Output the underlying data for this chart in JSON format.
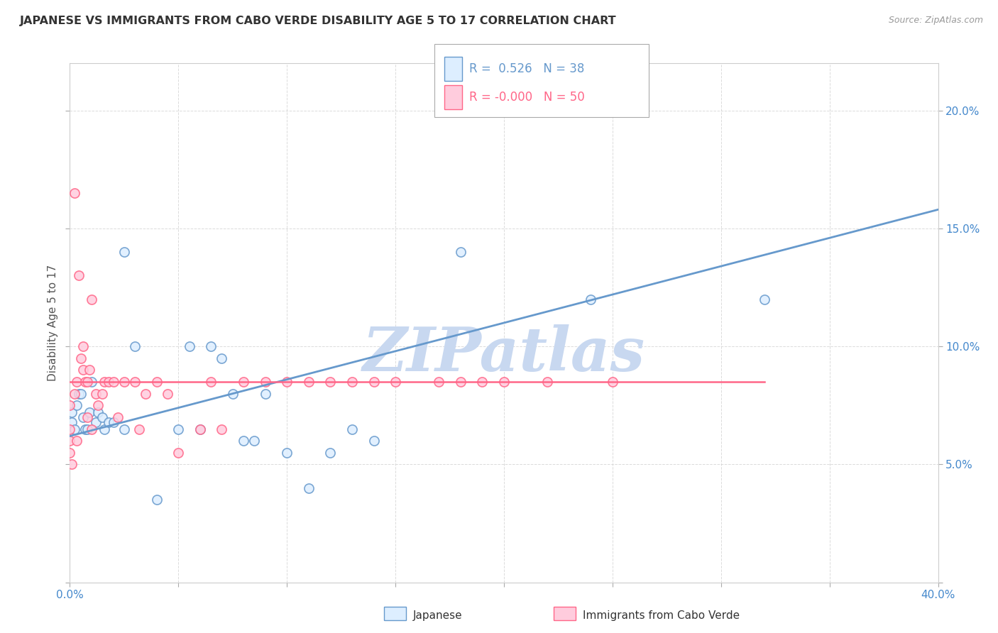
{
  "title": "JAPANESE VS IMMIGRANTS FROM CABO VERDE DISABILITY AGE 5 TO 17 CORRELATION CHART",
  "source": "Source: ZipAtlas.com",
  "ylabel": "Disability Age 5 to 17",
  "xlim": [
    0.0,
    0.4
  ],
  "ylim": [
    0.0,
    0.22
  ],
  "xticks": [
    0.0,
    0.05,
    0.1,
    0.15,
    0.2,
    0.25,
    0.3,
    0.35,
    0.4
  ],
  "yticks": [
    0.0,
    0.05,
    0.1,
    0.15,
    0.2
  ],
  "legend_r_japanese": "0.526",
  "legend_n_japanese": "38",
  "legend_r_cabo": "-0.000",
  "legend_n_cabo": "50",
  "watermark": "ZIPatlas",
  "watermark_color": "#c8d8f0",
  "color_japanese_edge": "#6699cc",
  "color_japanese_face": "#ddeeff",
  "color_cabo_edge": "#ff6688",
  "color_cabo_face": "#ffccdd",
  "trendline_japanese": [
    0.0,
    0.062,
    0.4,
    0.158
  ],
  "trendline_cabo": [
    0.0,
    0.085,
    0.32,
    0.085
  ],
  "japanese_x": [
    0.001,
    0.001,
    0.002,
    0.003,
    0.004,
    0.005,
    0.006,
    0.007,
    0.008,
    0.009,
    0.01,
    0.012,
    0.013,
    0.015,
    0.016,
    0.018,
    0.02,
    0.025,
    0.025,
    0.03,
    0.04,
    0.05,
    0.055,
    0.06,
    0.065,
    0.07,
    0.075,
    0.08,
    0.085,
    0.09,
    0.1,
    0.11,
    0.12,
    0.13,
    0.14,
    0.18,
    0.24,
    0.32
  ],
  "japanese_y": [
    0.068,
    0.072,
    0.065,
    0.075,
    0.08,
    0.08,
    0.07,
    0.065,
    0.065,
    0.072,
    0.085,
    0.068,
    0.072,
    0.07,
    0.065,
    0.068,
    0.068,
    0.14,
    0.065,
    0.1,
    0.035,
    0.065,
    0.1,
    0.065,
    0.1,
    0.095,
    0.08,
    0.06,
    0.06,
    0.08,
    0.055,
    0.04,
    0.055,
    0.065,
    0.06,
    0.14,
    0.12,
    0.12
  ],
  "cabo_x": [
    0.0,
    0.0,
    0.0,
    0.0,
    0.001,
    0.002,
    0.002,
    0.003,
    0.003,
    0.004,
    0.005,
    0.006,
    0.006,
    0.007,
    0.008,
    0.008,
    0.009,
    0.01,
    0.01,
    0.012,
    0.013,
    0.015,
    0.016,
    0.018,
    0.02,
    0.022,
    0.025,
    0.03,
    0.032,
    0.035,
    0.04,
    0.045,
    0.05,
    0.06,
    0.065,
    0.07,
    0.08,
    0.09,
    0.1,
    0.11,
    0.12,
    0.13,
    0.14,
    0.15,
    0.17,
    0.18,
    0.19,
    0.2,
    0.22,
    0.25
  ],
  "cabo_y": [
    0.075,
    0.065,
    0.06,
    0.055,
    0.05,
    0.165,
    0.08,
    0.085,
    0.06,
    0.13,
    0.095,
    0.1,
    0.09,
    0.085,
    0.085,
    0.07,
    0.09,
    0.12,
    0.065,
    0.08,
    0.075,
    0.08,
    0.085,
    0.085,
    0.085,
    0.07,
    0.085,
    0.085,
    0.065,
    0.08,
    0.085,
    0.08,
    0.055,
    0.065,
    0.085,
    0.065,
    0.085,
    0.085,
    0.085,
    0.085,
    0.085,
    0.085,
    0.085,
    0.085,
    0.085,
    0.085,
    0.085,
    0.085,
    0.085,
    0.085
  ],
  "background_color": "#ffffff",
  "grid_color": "#cccccc",
  "tick_color": "#4488cc",
  "title_color": "#333333",
  "source_color": "#999999"
}
